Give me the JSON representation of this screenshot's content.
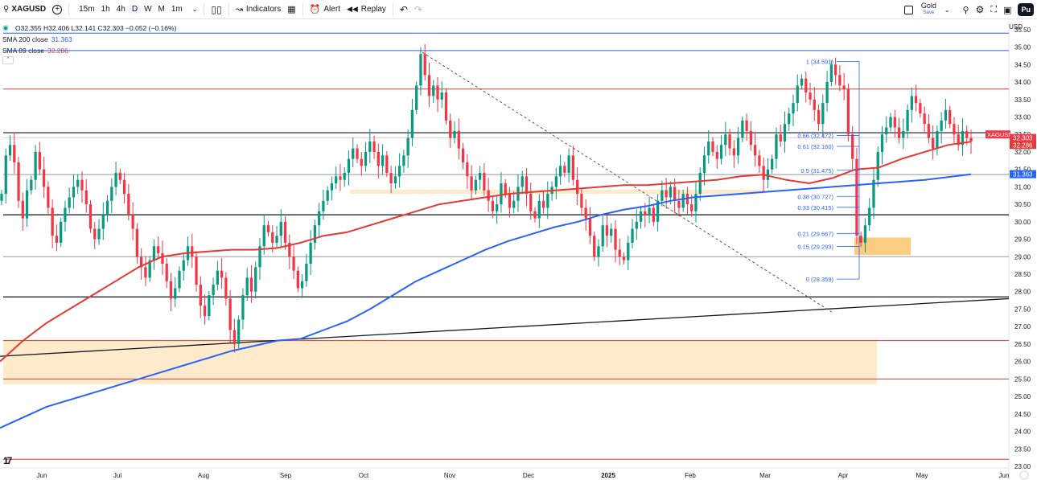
{
  "toolbar": {
    "symbol": "XAGUSD",
    "intervals": [
      "15m",
      "1h",
      "4h",
      "D",
      "W",
      "M",
      "1m"
    ],
    "active_interval": "D",
    "indicators_label": "Indicators",
    "alert_label": "Alert",
    "replay_label": "Replay",
    "layout_name": "Gold",
    "layout_status": "Save",
    "publish_label": "Pu"
  },
  "legend": {
    "ohlc": "O32.355 H32.406 L32.141 C32.303 −0.052 (−0.16%)",
    "sma200_label": "SMA 200 close",
    "sma200_value": "31.363",
    "sma89_label": "SMA 89 close",
    "sma89_value": "32.286"
  },
  "colors": {
    "up": "#089981",
    "down": "#f23645",
    "sma200": "#2962ff",
    "sma89": "#e53935",
    "zone": "#fde9c6",
    "zone_strong": "#f9c46b",
    "price_label": "#f23645"
  },
  "chart_data": {
    "type": "candlestick",
    "symbol": "XAGUSD",
    "interval": "D",
    "currency": "USD",
    "ylim": [
      23.0,
      35.75
    ],
    "y_ticks": [
      "35.50",
      "35.00",
      "34.50",
      "34.00",
      "33.50",
      "33.00",
      "32.50",
      "32.00",
      "31.50",
      "31.00",
      "30.50",
      "30.00",
      "29.50",
      "29.00",
      "28.50",
      "28.00",
      "27.50",
      "27.00",
      "26.50",
      "26.00",
      "25.50",
      "25.00",
      "24.50",
      "24.00",
      "23.50",
      "23.00"
    ],
    "x_labels": [
      "Jun",
      "Jul",
      "Aug",
      "Sep",
      "Oct",
      "Nov",
      "Dec",
      "2025",
      "Feb",
      "Mar",
      "Apr",
      "May",
      "Jun"
    ],
    "last_price_label": "XAGUSD",
    "last_price": "32.303",
    "sma89_last": "32.286",
    "sma200_last": "31.363",
    "horizontal_levels": {
      "blue": [
        35.4,
        34.9
      ],
      "red": [
        33.8,
        26.6,
        25.5,
        23.2
      ],
      "black": [
        32.55,
        30.2,
        27.85
      ],
      "gray": [
        31.35,
        29.0
      ]
    },
    "fibonacci": [
      {
        "label": "1 (34.591)",
        "value": 34.591
      },
      {
        "label": "0.66 (32.472)",
        "value": 32.472
      },
      {
        "label": "0.61 (32.160)",
        "value": 32.16
      },
      {
        "label": "0.5 (31.475)",
        "value": 31.475
      },
      {
        "label": "0.38 (30.727)",
        "value": 30.727
      },
      {
        "label": "0.33 (30.415)",
        "value": 30.415
      },
      {
        "label": "0.21 (29.667)",
        "value": 29.667
      },
      {
        "label": "0.15 (29.293)",
        "value": 29.293
      },
      {
        "label": "0 (28.359)",
        "value": 28.359
      }
    ],
    "zones": [
      {
        "from": 25.35,
        "to": 26.62
      },
      {
        "from": 29.05,
        "to": 29.55
      },
      {
        "from": 30.8,
        "to": 30.92
      }
    ],
    "trendlines": [
      {
        "style": "solid",
        "from": 26.15,
        "to": 27.8
      },
      {
        "style": "dashed",
        "from": 34.85,
        "to": 27.4
      }
    ],
    "sma89": [
      26.0,
      26.6,
      27.1,
      27.5,
      27.9,
      28.3,
      28.7,
      29.0,
      29.1,
      29.15,
      29.2,
      29.2,
      29.25,
      29.4,
      29.6,
      29.7,
      29.9,
      30.1,
      30.3,
      30.5,
      30.6,
      30.7,
      30.8,
      30.85,
      30.9,
      30.95,
      31.0,
      31.05,
      31.05,
      31.1,
      31.15,
      31.2,
      31.3,
      31.35,
      31.2,
      31.1,
      31.25,
      31.5,
      31.55,
      31.8,
      32.0,
      32.2,
      32.29
    ],
    "sma200": [
      24.1,
      24.4,
      24.7,
      24.9,
      25.1,
      25.3,
      25.5,
      25.7,
      25.9,
      26.1,
      26.3,
      26.45,
      26.6,
      26.65,
      26.9,
      27.15,
      27.5,
      27.9,
      28.3,
      28.6,
      28.9,
      29.2,
      29.45,
      29.65,
      29.85,
      30.0,
      30.2,
      30.35,
      30.45,
      30.6,
      30.7,
      30.75,
      30.8,
      30.85,
      30.9,
      30.95,
      31.0,
      31.05,
      31.1,
      31.15,
      31.2,
      31.28,
      31.36
    ],
    "closes": [
      30.8,
      31.9,
      32.2,
      31.7,
      30.6,
      30.1,
      30.9,
      31.2,
      32.0,
      31.5,
      31.0,
      30.4,
      29.6,
      29.4,
      30.0,
      30.4,
      30.7,
      31.0,
      31.2,
      30.9,
      30.5,
      29.8,
      29.5,
      29.8,
      30.2,
      30.6,
      31.0,
      31.4,
      31.2,
      30.8,
      30.2,
      29.8,
      29.0,
      28.7,
      28.4,
      28.9,
      29.3,
      29.1,
      28.8,
      28.3,
      27.8,
      28.1,
      28.6,
      28.9,
      29.3,
      29.0,
      28.2,
      27.6,
      27.3,
      27.9,
      28.2,
      28.6,
      28.4,
      27.8,
      26.9,
      26.5,
      27.2,
      27.9,
      28.4,
      28.0,
      28.7,
      29.3,
      29.9,
      29.7,
      29.4,
      29.6,
      30.0,
      29.4,
      29.0,
      28.6,
      28.1,
      28.3,
      28.8,
      29.4,
      29.9,
      30.3,
      30.6,
      30.9,
      31.1,
      31.3,
      31.2,
      31.4,
      31.8,
      32.1,
      31.8,
      31.6,
      32.0,
      32.3,
      32.0,
      31.6,
      31.9,
      31.4,
      31.1,
      31.3,
      31.6,
      31.9,
      32.4,
      33.2,
      33.9,
      34.8,
      34.2,
      33.6,
      33.9,
      33.5,
      33.7,
      32.9,
      32.4,
      32.6,
      32.1,
      31.7,
      31.3,
      30.9,
      31.2,
      31.4,
      30.9,
      30.6,
      30.3,
      30.5,
      31.1,
      30.8,
      30.4,
      30.6,
      31.0,
      31.3,
      30.8,
      30.3,
      30.1,
      30.6,
      30.4,
      30.8,
      31.0,
      31.3,
      31.6,
      31.4,
      31.9,
      31.2,
      30.8,
      30.4,
      30.1,
      29.6,
      29.0,
      29.3,
      29.9,
      29.6,
      29.8,
      29.2,
      29.0,
      28.9,
      29.4,
      29.8,
      30.0,
      30.3,
      30.2,
      30.4,
      30.0,
      30.6,
      30.9,
      30.7,
      31.0,
      30.6,
      30.4,
      30.8,
      30.5,
      30.3,
      30.8,
      31.4,
      31.9,
      32.3,
      32.0,
      31.8,
      32.2,
      32.5,
      32.1,
      31.9,
      32.4,
      32.9,
      32.6,
      32.2,
      31.9,
      31.6,
      31.2,
      31.5,
      31.8,
      32.5,
      32.3,
      32.8,
      33.1,
      33.4,
      33.9,
      34.1,
      33.7,
      33.5,
      33.2,
      32.8,
      33.4,
      34.0,
      34.5,
      34.2,
      33.9,
      33.8,
      32.5,
      31.8,
      29.6,
      29.4,
      29.9,
      30.4,
      31.2,
      32.0,
      32.5,
      32.7,
      33.0,
      32.7,
      32.4,
      32.6,
      33.2,
      33.6,
      33.4,
      33.1,
      32.8,
      32.4,
      32.1,
      32.6,
      32.9,
      33.2,
      32.8,
      32.5,
      32.2,
      32.6,
      32.4,
      32.3
    ]
  }
}
